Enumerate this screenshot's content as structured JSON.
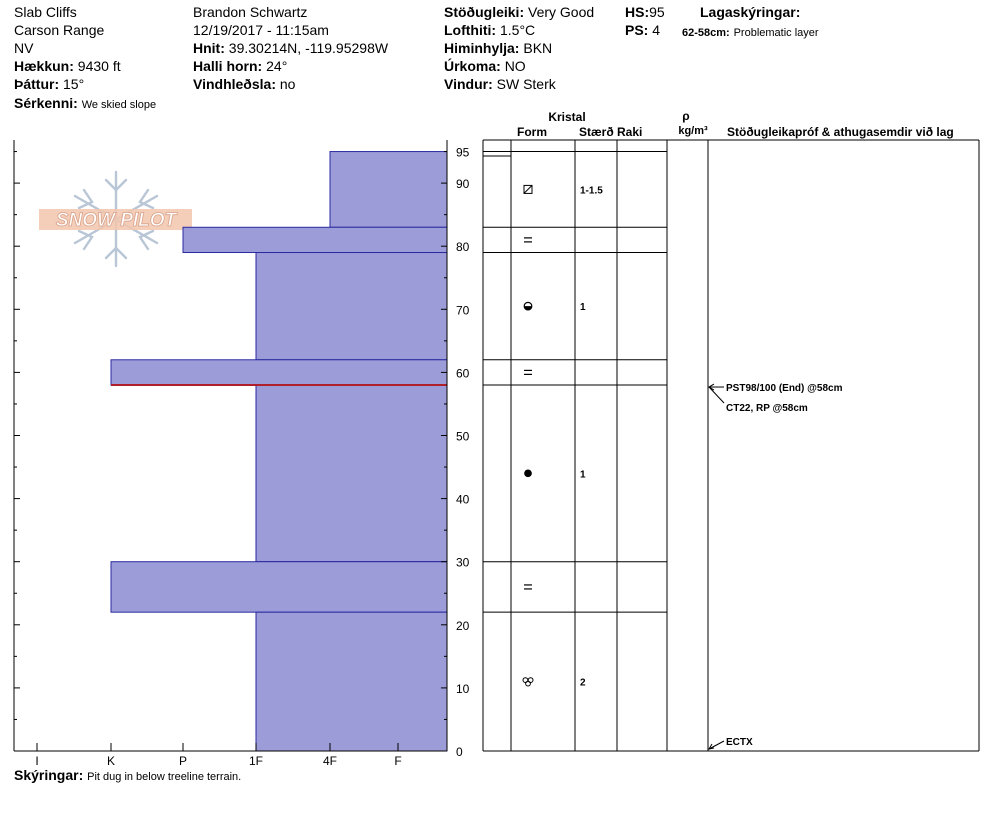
{
  "header": {
    "col1": {
      "location": "Slab Cliffs",
      "range": "Carson Range",
      "aspect": "NV",
      "elevation_label": "Hækkun:",
      "elevation_value": "9430 ft",
      "slope_label": "Þáttur:",
      "slope_value": "15°",
      "feature_label": "Sérkenni:",
      "feature_value": "We skied slope"
    },
    "col2": {
      "observer": "Brandon Schwartz",
      "datetime": "12/19/2017 - 11:15am",
      "coords_label": "Hnit:",
      "coords_value": "39.30214N, -119.95298W",
      "aspect_angle_label": "Halli horn:",
      "aspect_angle_value": "24°",
      "wind_loading_label": "Vindhleðsla:",
      "wind_loading_value": "no"
    },
    "col3": {
      "stability_label": "Stöðugleiki:",
      "stability_value": "Very Good",
      "air_temp_label": "Lofthiti:",
      "air_temp_value": "1.5°C",
      "sky_label": "Himinhylja:",
      "sky_value": "BKN",
      "precip_label": "Úrkoma:",
      "precip_value": "NO",
      "wind_label": "Vindur:",
      "wind_value": "SW Sterk"
    },
    "col4": {
      "hs_label": "HS:",
      "hs_value": "95",
      "ps_label": "PS:",
      "ps_value": "4"
    },
    "col5": {
      "layer_notes_label": "Lagaskýringar:",
      "layer_notes_range": "62-58cm:",
      "layer_notes_text": "Problematic layer"
    }
  },
  "logo": {
    "text": "SNOW PILOT"
  },
  "table_headers": {
    "crystal": "Kristal",
    "form": "Form",
    "size": "Stærð",
    "moisture": "Raki",
    "rho": "ρ",
    "density_unit": "kg/m³",
    "tests": "Stöðugleikapróf & athugasemdir við lag"
  },
  "comments": {
    "label": "Skýringar:",
    "text": "Pit dug in below treeline terrain."
  },
  "colors": {
    "layer_fill": "#9c9cd8",
    "layer_stroke": "#2a2aa0",
    "problem_line": "#b0202a"
  },
  "chart_data": {
    "type": "bar",
    "orientation": "horizontal",
    "title": "",
    "xlabel": "",
    "ylabel": "",
    "hardness_scale": [
      "I",
      "K",
      "P",
      "1F",
      "4F",
      "F"
    ],
    "y_ticks": [
      0,
      10,
      20,
      30,
      40,
      50,
      60,
      70,
      80,
      90
    ],
    "y_top_label": "95",
    "ylim": [
      0,
      95
    ],
    "layers": [
      {
        "top": 95,
        "bottom": 83,
        "hardness": "4F",
        "form": "faceted-rounded",
        "size": "1-1.5"
      },
      {
        "top": 83,
        "bottom": 79,
        "hardness": "P",
        "form": "layer-interface",
        "size": ""
      },
      {
        "top": 79,
        "bottom": 62,
        "hardness": "1F",
        "form": "mixed-forms",
        "size": "1"
      },
      {
        "top": 62,
        "bottom": 58,
        "hardness": "K",
        "form": "layer-interface",
        "size": ""
      },
      {
        "top": 58,
        "bottom": 30,
        "hardness": "1F",
        "form": "rounded-grains",
        "size": "1"
      },
      {
        "top": 30,
        "bottom": 22,
        "hardness": "K",
        "form": "layer-interface",
        "size": ""
      },
      {
        "top": 22,
        "bottom": 0,
        "hardness": "1F",
        "form": "melt-forms",
        "size": "2"
      }
    ],
    "problem_layer_depth": 58,
    "tests": [
      {
        "depth": 58,
        "lines": [
          "PST98/100 (End) @58cm",
          "CT22, RP @58cm"
        ]
      },
      {
        "depth": 0,
        "lines": [
          "ECTX"
        ]
      }
    ]
  }
}
